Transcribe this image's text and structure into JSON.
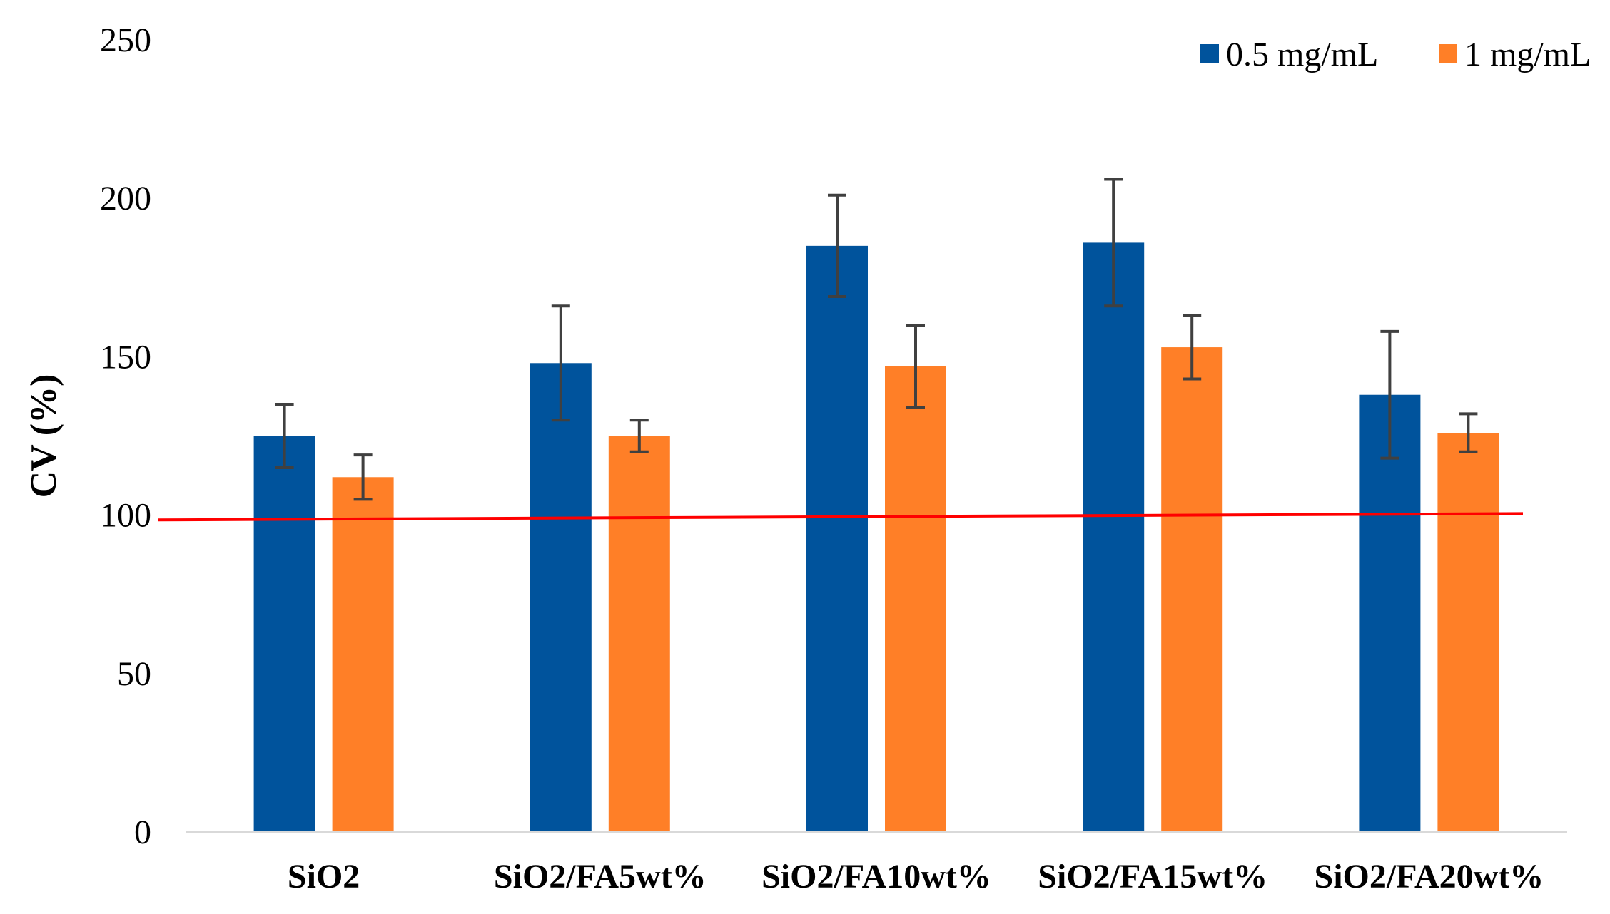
{
  "chart_data": {
    "type": "bar",
    "title": "",
    "xlabel": "",
    "ylabel": "CV (%)",
    "ylim": [
      0,
      250
    ],
    "yticks": [
      0,
      50,
      100,
      150,
      200,
      250
    ],
    "grid": false,
    "legend_position": "top-right",
    "categories": [
      "SiO2",
      "SiO2/FA5wt%",
      "SiO2/FA10wt%",
      "SiO2/FA15wt%",
      "SiO2/FA20wt%"
    ],
    "series": [
      {
        "name": "0.5 mg/mL",
        "color": "#00539C",
        "values": [
          125,
          148,
          185,
          186,
          138
        ],
        "errors": [
          10,
          18,
          16,
          20,
          20
        ]
      },
      {
        "name": "1 mg/mL",
        "color": "#FF7F27",
        "values": [
          112,
          125,
          147,
          153,
          126
        ],
        "errors": [
          7,
          5,
          13,
          10,
          6
        ]
      }
    ],
    "reference_line": {
      "color": "#FF0000",
      "value_start": 98.5,
      "value_end": 100.5
    },
    "error_bar_color": "#404040"
  }
}
